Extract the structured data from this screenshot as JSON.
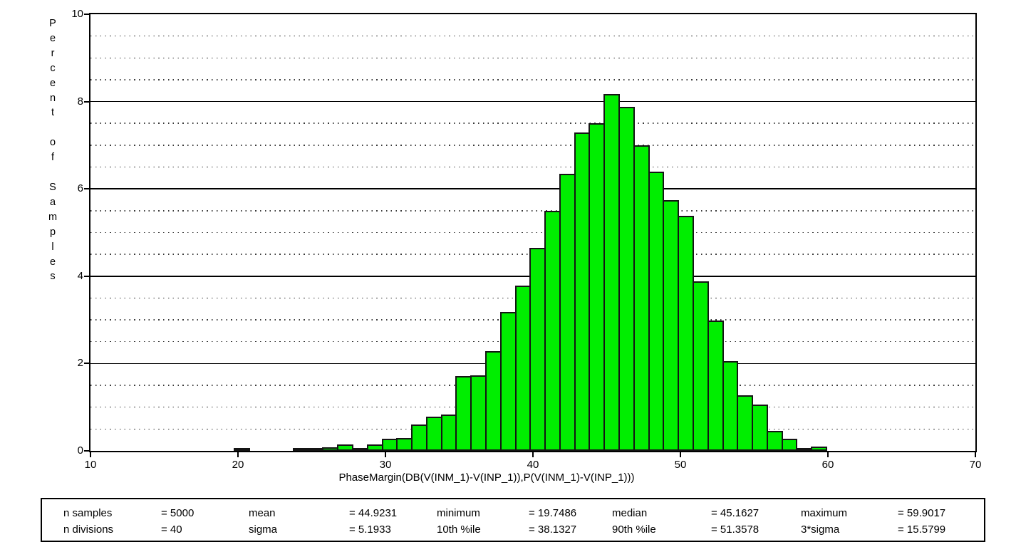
{
  "chart_data": {
    "type": "bar",
    "subtype": "histogram",
    "title": "",
    "xlabel": "PhaseMargin(DB(V(INM_1)-V(INP_1)),P(V(INM_1)-V(INP_1)))",
    "ylabel": "Percent of Samples",
    "xlim": [
      10,
      70
    ],
    "ylim": [
      0,
      10
    ],
    "xticks": [
      10,
      20,
      30,
      40,
      50,
      60,
      70
    ],
    "yticks": [
      0,
      2,
      4,
      6,
      8,
      10
    ],
    "y_minor_step": 0.5,
    "grid": "major-solid-minor-dotted",
    "legend": "none",
    "bar_color": "#00ee00",
    "bar_border_color": "#141414",
    "bin_start": 19.7486,
    "bin_width": 1.003828,
    "n_bins": 40,
    "bar_percents": [
      0.04,
      0,
      0,
      0,
      0.04,
      0.04,
      0.08,
      0.14,
      0.06,
      0.15,
      0.28,
      0.3,
      0.6,
      0.78,
      0.83,
      1.71,
      1.73,
      2.28,
      3.18,
      3.78,
      4.65,
      5.5,
      6.35,
      7.3,
      7.5,
      8.18,
      7.88,
      7.0,
      6.39,
      5.74,
      5.39,
      3.88,
      2.98,
      2.05,
      1.27,
      1.06,
      0.45,
      0.27,
      0.06,
      0.09
    ]
  },
  "stats_table": {
    "rows": [
      {
        "cells": [
          {
            "label": "n samples",
            "value": "= 5000"
          },
          {
            "label": "mean",
            "value": "= 44.9231"
          },
          {
            "label": "minimum",
            "value": "= 19.7486"
          },
          {
            "label": "median",
            "value": "= 45.1627"
          },
          {
            "label": "maximum",
            "value": "= 59.9017"
          }
        ]
      },
      {
        "cells": [
          {
            "label": "n divisions",
            "value": "= 40"
          },
          {
            "label": "sigma",
            "value": "= 5.1933"
          },
          {
            "label": "10th %ile",
            "value": "= 38.1327"
          },
          {
            "label": "90th %ile",
            "value": "= 51.3578"
          },
          {
            "label": "3*sigma",
            "value": "= 15.5799"
          }
        ]
      }
    ]
  }
}
